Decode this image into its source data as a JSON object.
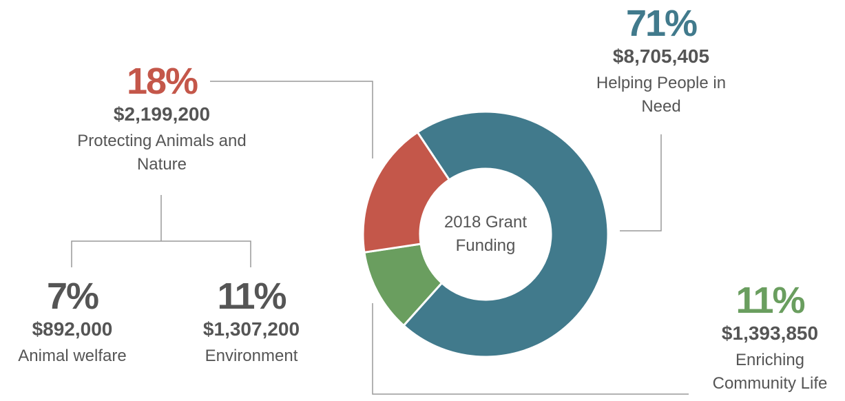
{
  "chart_data": {
    "type": "pie",
    "donut": true,
    "center_label": "2018 Grant Funding",
    "categories": [
      "Helping People in Need",
      "Enriching Community Life",
      "Protecting Animals and Nature"
    ],
    "values": [
      71,
      11,
      18
    ],
    "value_labels": [
      "71%",
      "11%",
      "18%"
    ],
    "amounts": [
      "$8,705,405",
      "$1,393,850",
      "$2,199,200"
    ],
    "colors": [
      "#417a8c",
      "#6a9e5f",
      "#c4574a"
    ],
    "breakdown": {
      "parent": "Protecting Animals and Nature",
      "categories": [
        "Animal welfare",
        "Environment"
      ],
      "value_labels": [
        "7%",
        "11%"
      ],
      "amounts": [
        "$892,000",
        "$1,307,200"
      ]
    }
  }
}
